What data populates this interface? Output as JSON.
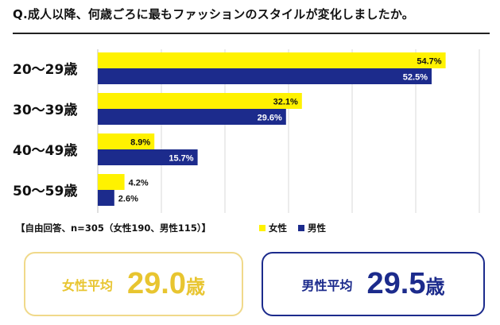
{
  "colors": {
    "female": "#fff200",
    "male": "#1c2b8c",
    "female_box_border": "#f0d98a",
    "female_text": "#e8c530",
    "male_box_border": "#1c2b8c",
    "male_text": "#1c2b8c"
  },
  "header": {
    "title": "Q.成人以降、何歳ごろに最もファッションのスタイルが変化しましたか。"
  },
  "chart_data": {
    "type": "bar",
    "orientation": "horizontal",
    "categories": [
      "20～29歳",
      "30～39歳",
      "40～49歳",
      "50～59歳"
    ],
    "series": [
      {
        "name": "女性",
        "values": [
          54.7,
          32.1,
          8.9,
          4.2
        ],
        "labels": [
          "54.7%",
          "32.1%",
          "8.9%",
          "4.2%"
        ]
      },
      {
        "name": "男性",
        "values": [
          52.5,
          29.6,
          15.7,
          2.6
        ],
        "labels": [
          "52.5%",
          "29.6%",
          "15.7%",
          "2.6%"
        ]
      }
    ],
    "xlim": [
      0,
      60
    ],
    "grid": true,
    "legend": "bottom-right"
  },
  "footnote": "【自由回答、n=305（女性190、男性115）】",
  "legend": {
    "female": "女性",
    "male": "男性"
  },
  "averages": {
    "female": {
      "label": "女性平均",
      "value": "29.0",
      "unit": "歳"
    },
    "male": {
      "label": "男性平均",
      "value": "29.5",
      "unit": "歳"
    }
  }
}
